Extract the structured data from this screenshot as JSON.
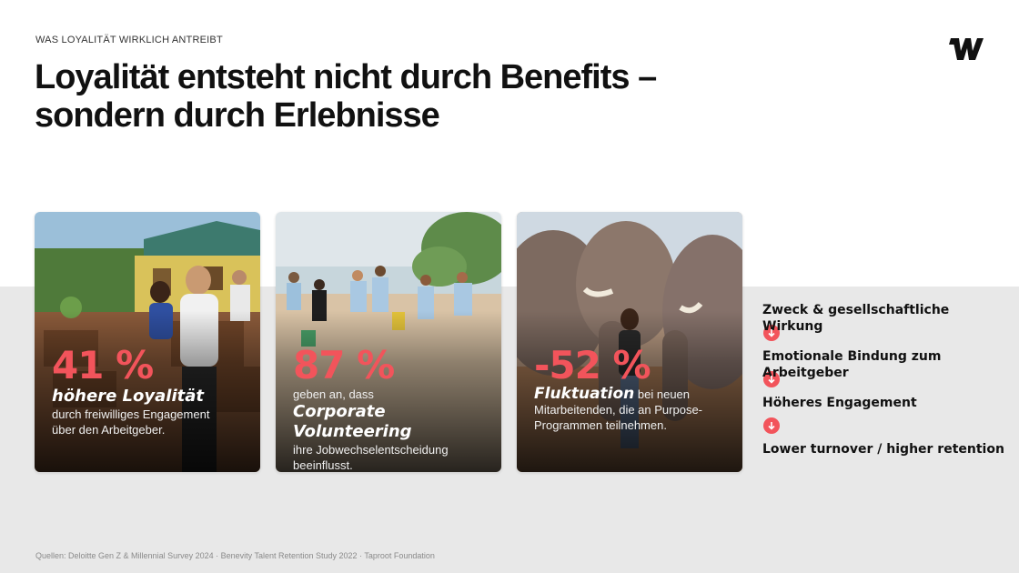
{
  "eyebrow": "WAS LOYALITÄT WIRKLICH ANTREIBT",
  "title": {
    "line1": "Loyalität entsteht nicht durch Benefits –",
    "line2": "sondern durch Erlebnisse"
  },
  "logo": {
    "icon": "w-logo-icon"
  },
  "colors": {
    "accent": "#f2545b",
    "band": "#e8e8e8",
    "text": "#111111"
  },
  "cards": [
    {
      "stat": "41 %",
      "lead": "höhere Loyalität",
      "desc_line1": "durch freiwilliges Engagement",
      "desc_line2": "über den Arbeitgeber."
    },
    {
      "stat": "87 %",
      "pre": "geben an, dass",
      "lead": "Corporate Volunteering",
      "desc_line1": "ihre Jobwechselentscheidung",
      "desc_line2": "beeinflusst."
    },
    {
      "stat": "-52 %",
      "lead": "Fluktuation",
      "lead_suffix": " bei neuen",
      "desc_line1": "Mitarbeitenden, die an Purpose-",
      "desc_line2": "Programmen teilnehmen."
    }
  ],
  "flow": [
    "Zweck & gesellschaftliche Wirkung",
    "Emotionale Bindung zum Arbeitgeber",
    "Höheres Engagement",
    "Lower turnover / higher retention"
  ],
  "source": "Quellen: Deloitte Gen Z & Millennial Survey 2024 · Benevity Talent Retention Study 2022 · Taproot Foundation"
}
